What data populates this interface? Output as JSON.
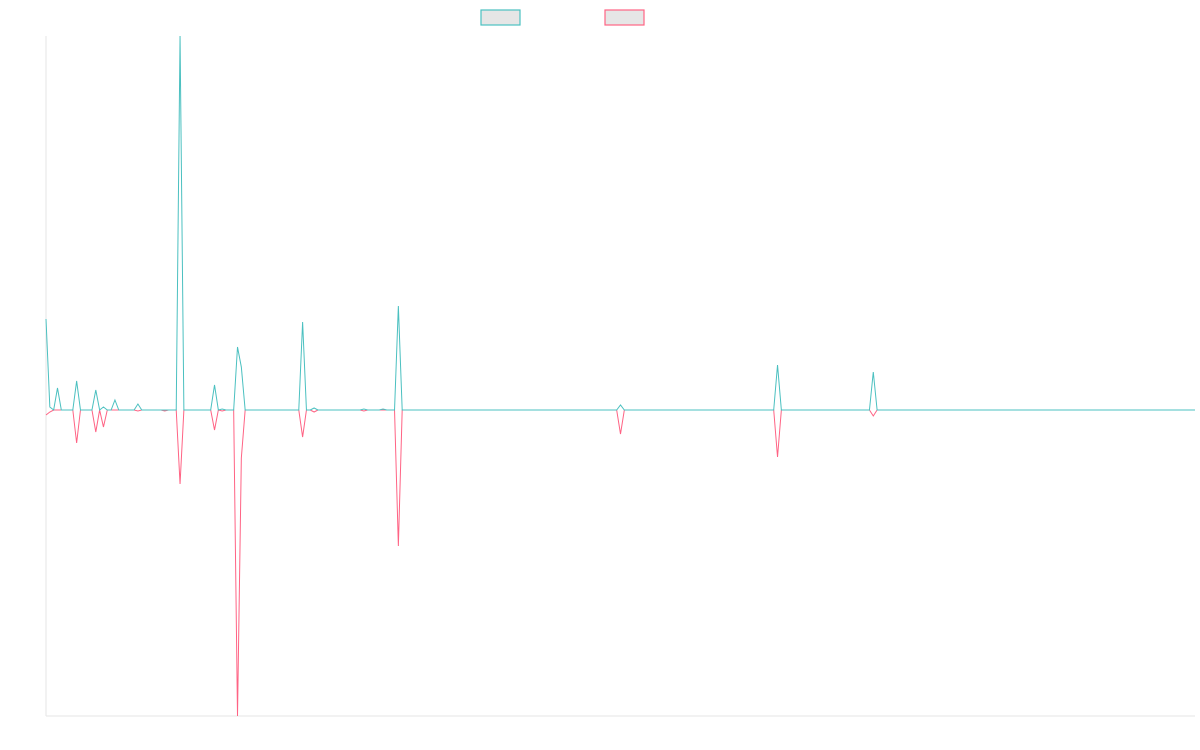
{
  "chart_data": {
    "type": "line",
    "title": "",
    "xlabel": "",
    "ylabel": "",
    "legend_placement": "top-center",
    "x_count": 301,
    "ylim": [
      -306,
      374
    ],
    "grid": false,
    "series": [
      {
        "name": "",
        "color": "#4bc0c0",
        "default": 0,
        "points": {
          "0": 91,
          "1": 3,
          "3": 22,
          "8": 29,
          "13": 20,
          "15": 3,
          "18": 10,
          "24": 6,
          "35": 374,
          "44": 25,
          "46": 1,
          "50": 63,
          "51": 43,
          "67": 88,
          "70": 2,
          "83": 1,
          "88": 1,
          "92": 104,
          "150": 5,
          "191": 45,
          "216": 38
        }
      },
      {
        "name": "",
        "color": "#ff6384",
        "default": 0,
        "points": {
          "0": -5,
          "1": -2,
          "8": -33,
          "13": -22,
          "15": -17,
          "24": -1,
          "31": -1,
          "35": -74,
          "44": -20,
          "46": -1,
          "50": -306,
          "51": -48,
          "67": -27,
          "70": -2,
          "83": -1,
          "92": -136,
          "150": -24,
          "191": -47,
          "216": -6
        }
      }
    ]
  }
}
